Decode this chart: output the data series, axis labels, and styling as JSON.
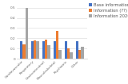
{
  "categories": [
    "Cardiovascular",
    "Respiratory",
    "Gastrointestinal",
    "Musculoskeletal",
    "Psychiatric",
    "Other"
  ],
  "series": [
    {
      "label": "Base information",
      "color": "#4472C4",
      "values": [
        0.17,
        0.17,
        0.17,
        0.17,
        0.17,
        0.17
      ]
    },
    {
      "label": "Information (??)",
      "color": "#ED7D31",
      "values": [
        0.14,
        0.18,
        0.19,
        0.27,
        0.1,
        0.09
      ]
    },
    {
      "label": "Information 2020",
      "color": "#A5A5A5",
      "values": [
        0.5,
        0.17,
        0.13,
        0.09,
        0.06,
        0.12
      ]
    }
  ],
  "ylim": [
    0,
    0.55
  ],
  "yticks": [
    0,
    0.1,
    0.2,
    0.3,
    0.4,
    0.5
  ],
  "ytick_labels": [
    "0",
    "0.1",
    "0.2",
    "0.3",
    "0.4",
    "0.5"
  ],
  "background_color": "#ffffff",
  "grid_color": "#d8d8d8",
  "bar_width": 0.24,
  "legend_fontsize": 3.8,
  "tick_fontsize": 3.0,
  "figsize": [
    1.6,
    1.06
  ],
  "dpi": 100
}
